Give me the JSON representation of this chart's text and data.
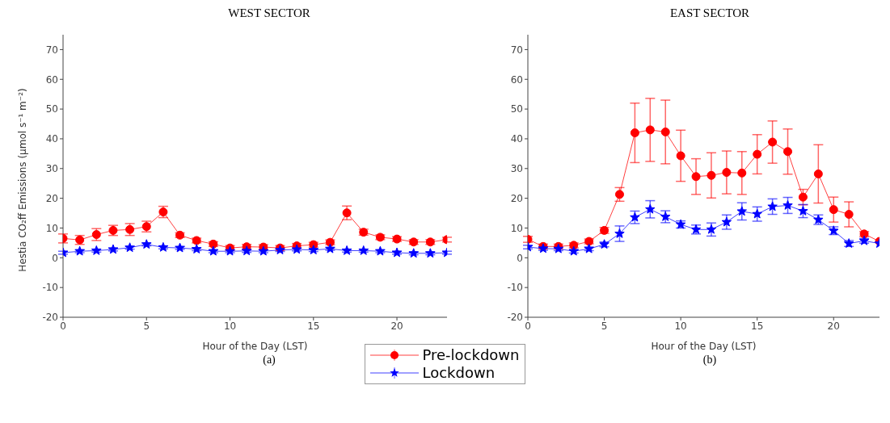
{
  "chart_data": [
    {
      "type": "line",
      "title": "WEST SECTOR",
      "xlabel": "Hour of the Day (LST)",
      "ylabel": "Hestia CO₂ff Emissions (μmol s⁻¹ m⁻²)",
      "annotations": [
        "(a)"
      ],
      "x": [
        0,
        1,
        2,
        3,
        4,
        5,
        6,
        7,
        8,
        9,
        10,
        11,
        12,
        13,
        14,
        15,
        16,
        17,
        18,
        19,
        20,
        21,
        22,
        23
      ],
      "xlim": [
        0,
        23
      ],
      "xticks": [
        0,
        5,
        10,
        15,
        20
      ],
      "ylim": [
        -20,
        75
      ],
      "yticks": [
        -20,
        -10,
        0,
        10,
        20,
        30,
        40,
        50,
        60,
        70
      ],
      "legend": "bottom",
      "series": [
        {
          "name": "Pre-lockdown",
          "color": "#ff0000",
          "marker": "circle",
          "values": [
            6.5,
            6,
            7.8,
            9.2,
            9.5,
            10.5,
            15.4,
            7.6,
            5.8,
            4.6,
            3.3,
            3.7,
            3.6,
            3.3,
            4,
            4.4,
            5.2,
            15.1,
            8.6,
            6.9,
            6.3,
            5.3,
            5.3,
            6.1
          ],
          "errors": [
            1.5,
            1.5,
            2,
            1.7,
            2,
            1.8,
            1.9,
            0.8,
            0.8,
            0.8,
            0.8,
            0.8,
            0.8,
            0.8,
            0.8,
            0.8,
            0.8,
            2.3,
            1,
            0.8,
            0.8,
            0.8,
            0.8,
            0.8
          ]
        },
        {
          "name": "Lockdown",
          "color": "#0000ff",
          "marker": "star",
          "values": [
            1.7,
            2.2,
            2.4,
            2.8,
            3.4,
            4.5,
            3.5,
            3.3,
            2.9,
            2.2,
            2.2,
            2.3,
            2.2,
            2.6,
            2.8,
            2.6,
            3,
            2.4,
            2.4,
            2.2,
            1.7,
            1.5,
            1.5,
            1.7
          ],
          "errors": [
            0.5,
            0.5,
            0.5,
            0.5,
            0.5,
            0.5,
            0.5,
            0.5,
            0.5,
            0.5,
            0.5,
            0.5,
            0.5,
            0.5,
            0.5,
            0.5,
            0.5,
            0.5,
            0.5,
            0.5,
            0.5,
            0.5,
            0.5,
            0.5
          ]
        }
      ]
    },
    {
      "type": "line",
      "title": "EAST SECTOR",
      "xlabel": "Hour of the Day (LST)",
      "annotations": [
        "(b)"
      ],
      "x": [
        0,
        1,
        2,
        3,
        4,
        5,
        6,
        7,
        8,
        9,
        10,
        11,
        12,
        13,
        14,
        15,
        16,
        17,
        18,
        19,
        20,
        21,
        22,
        23
      ],
      "xlim": [
        0,
        23
      ],
      "xticks": [
        0,
        5,
        10,
        15,
        20
      ],
      "ylim": [
        -20,
        75
      ],
      "yticks": [
        -20,
        -10,
        0,
        10,
        20,
        30,
        40,
        50,
        60,
        70
      ],
      "series": [
        {
          "color": "#ff0000",
          "marker": "circle",
          "values": [
            6.2,
            3.8,
            3.8,
            4.2,
            5.5,
            9.2,
            21.3,
            42,
            43,
            42.3,
            34.3,
            27.3,
            27.7,
            28.7,
            28.5,
            34.8,
            38.9,
            35.7,
            20.4,
            28.2,
            16.2,
            14.6,
            8,
            5.5
          ],
          "errors": [
            1,
            0.8,
            0.8,
            0.8,
            0.8,
            1,
            2.3,
            10,
            10.6,
            10.7,
            8.6,
            6,
            7.6,
            7.2,
            7.2,
            6.6,
            7.1,
            7.6,
            2.6,
            9.8,
            4.2,
            4.2,
            0.8,
            null
          ]
        },
        {
          "color": "#0000ff",
          "marker": "star",
          "values": [
            3.6,
            3.1,
            3,
            2.2,
            3,
            4.5,
            8.1,
            13.6,
            16.3,
            13.8,
            11.2,
            9.5,
            9.5,
            12,
            15.6,
            14.7,
            17.2,
            17.6,
            15.7,
            12.8,
            9.1,
            4.8,
            5.7,
            4.8
          ],
          "errors": [
            0.6,
            0.6,
            0.6,
            0.6,
            0.6,
            0.8,
            2.6,
            2.1,
            2.9,
            2,
            1.2,
            1.5,
            2.2,
            2.4,
            2.9,
            2.4,
            2.6,
            2.7,
            2.2,
            1.6,
            1.3,
            1,
            0.8,
            null
          ]
        }
      ]
    }
  ]
}
